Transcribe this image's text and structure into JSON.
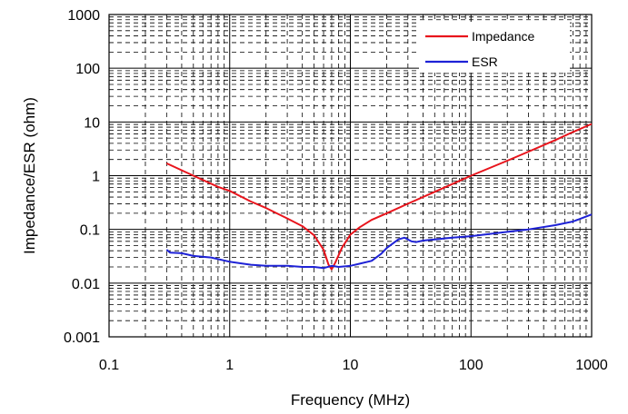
{
  "chart_data": {
    "type": "line",
    "xlabel": "Frequency (MHz)",
    "ylabel": "Impedance/ESR (ohm)",
    "x_scale": "log",
    "y_scale": "log",
    "xlim": [
      0.1,
      1000
    ],
    "ylim": [
      0.001,
      1000
    ],
    "x_ticks": [
      "0.1",
      "1",
      "10",
      "100",
      "1000"
    ],
    "y_ticks": [
      "0.001",
      "0.01",
      "0.1",
      "1",
      "10",
      "100",
      "1000"
    ],
    "grid": true,
    "legend_position": "top-right",
    "series": [
      {
        "name": "Impedance",
        "color": "#e8141c",
        "points": [
          [
            0.3,
            1.7
          ],
          [
            0.5,
            1.0
          ],
          [
            0.8,
            0.62
          ],
          [
            1.0,
            0.52
          ],
          [
            1.5,
            0.33
          ],
          [
            2.0,
            0.25
          ],
          [
            3.0,
            0.16
          ],
          [
            4.0,
            0.115
          ],
          [
            5.0,
            0.078
          ],
          [
            6.0,
            0.042
          ],
          [
            6.6,
            0.022
          ],
          [
            7.0,
            0.018
          ],
          [
            7.5,
            0.024
          ],
          [
            8.5,
            0.045
          ],
          [
            10.0,
            0.08
          ],
          [
            12.0,
            0.11
          ],
          [
            15.0,
            0.15
          ],
          [
            20.0,
            0.2
          ],
          [
            30.0,
            0.3
          ],
          [
            50.0,
            0.5
          ],
          [
            70.0,
            0.7
          ],
          [
            100.0,
            1.0
          ],
          [
            200.0,
            1.9
          ],
          [
            300.0,
            2.8
          ],
          [
            500.0,
            4.6
          ],
          [
            700.0,
            6.5
          ],
          [
            1000.0,
            9.2
          ]
        ]
      },
      {
        "name": "ESR",
        "color": "#1e22d6",
        "points": [
          [
            0.3,
            0.042
          ],
          [
            0.32,
            0.037
          ],
          [
            0.4,
            0.036
          ],
          [
            0.5,
            0.032
          ],
          [
            0.7,
            0.03
          ],
          [
            1.0,
            0.025
          ],
          [
            1.5,
            0.022
          ],
          [
            2.0,
            0.021
          ],
          [
            3.0,
            0.021
          ],
          [
            4.0,
            0.02
          ],
          [
            5.0,
            0.02
          ],
          [
            6.0,
            0.019
          ],
          [
            7.0,
            0.021
          ],
          [
            8.0,
            0.02
          ],
          [
            10.0,
            0.021
          ],
          [
            12.0,
            0.023
          ],
          [
            15.0,
            0.026
          ],
          [
            18.0,
            0.035
          ],
          [
            20.0,
            0.045
          ],
          [
            25.0,
            0.065
          ],
          [
            28.0,
            0.07
          ],
          [
            32.0,
            0.06
          ],
          [
            35.0,
            0.058
          ],
          [
            40.0,
            0.062
          ],
          [
            50.0,
            0.065
          ],
          [
            70.0,
            0.07
          ],
          [
            100.0,
            0.075
          ],
          [
            200.0,
            0.09
          ],
          [
            300.0,
            0.1
          ],
          [
            500.0,
            0.12
          ],
          [
            700.0,
            0.14
          ],
          [
            1000.0,
            0.19
          ]
        ]
      }
    ]
  }
}
